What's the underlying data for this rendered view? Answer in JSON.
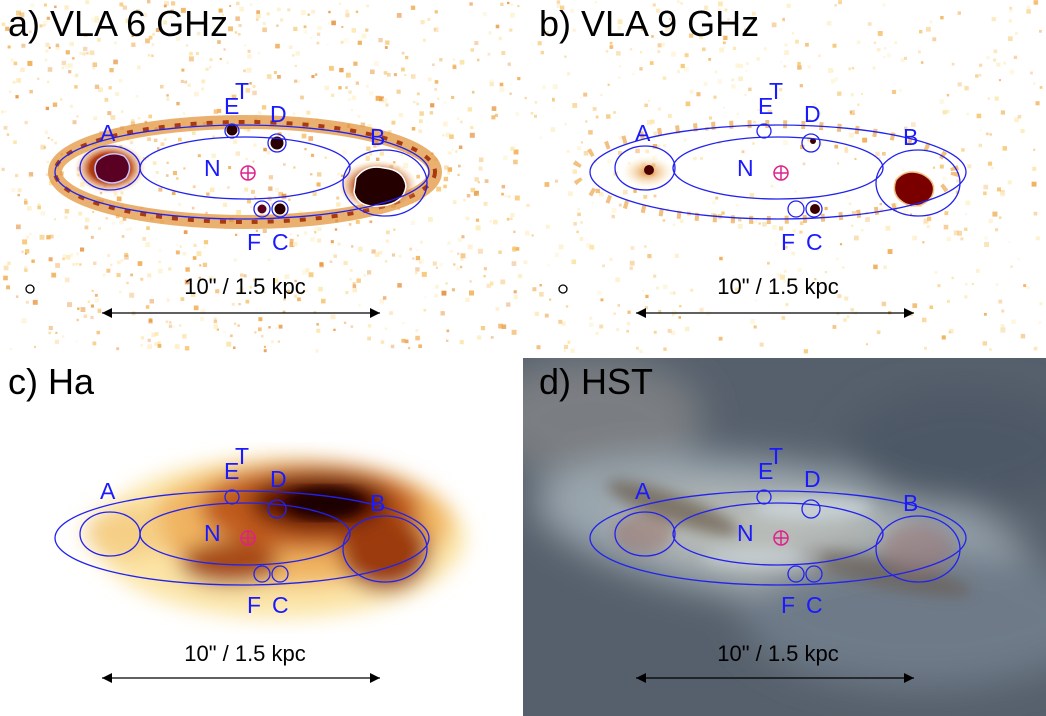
{
  "scale_bar_label": "10\" / 1.5 kpc",
  "panels": [
    {
      "id": "a",
      "title": "a) VLA 6 GHz",
      "background": "radio"
    },
    {
      "id": "b",
      "title": "b) VLA 9 GHz",
      "background": "radio-sparse"
    },
    {
      "id": "c",
      "title": "c) Ha",
      "background": "halpha"
    },
    {
      "id": "d",
      "title": "d) HST",
      "background": "optical"
    }
  ],
  "regions": {
    "A": "A",
    "B": "B",
    "C": "C",
    "D": "D",
    "E": "E",
    "F": "F",
    "T": "T",
    "N": "N"
  },
  "colors": {
    "region_outline": "#2222ee",
    "region_label": "#1a1aff",
    "nucleus_marker": "#e0208a",
    "emission_dark": "#6b0000",
    "emission_mid": "#c0541a",
    "emission_light": "#f6c67a",
    "hst_background": "#56606c"
  }
}
